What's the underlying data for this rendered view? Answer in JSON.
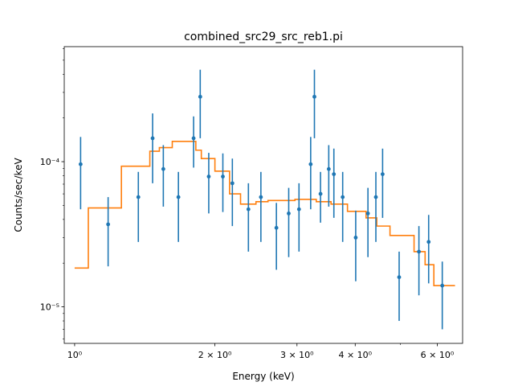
{
  "colors": {
    "data": "#1f77b4",
    "model": "#ff7f0e"
  },
  "chart_data": {
    "type": "scatter",
    "title": "combined_src29_src_reb1.pi",
    "xlabel": "Energy (keV)",
    "ylabel": "Counts/sec/keV",
    "xscale": "log",
    "yscale": "log",
    "xlim": [
      0.95,
      6.8
    ],
    "ylim": [
      5.6e-06,
      0.00062
    ],
    "x_ticks": [
      {
        "value": 1,
        "label": "10⁰"
      },
      {
        "value": 2,
        "label": "2 × 10⁰"
      },
      {
        "value": 3,
        "label": "3 × 10⁰"
      },
      {
        "value": 4,
        "label": "4 × 10⁰"
      },
      {
        "value": 6,
        "label": "6 × 10⁰"
      }
    ],
    "y_ticks": [
      {
        "value": 1e-05,
        "label": "10⁻⁵"
      },
      {
        "value": 0.0001,
        "label": "10⁻⁴"
      }
    ],
    "grid": false,
    "data_points": [
      {
        "x": 1.03,
        "y": 9.6e-05,
        "lo": 4.7e-05,
        "hi": 0.000148
      },
      {
        "x": 1.18,
        "y": 3.7e-05,
        "lo": 1.9e-05,
        "hi": 5.7e-05
      },
      {
        "x": 1.37,
        "y": 5.7e-05,
        "lo": 2.8e-05,
        "hi": 8.5e-05
      },
      {
        "x": 1.47,
        "y": 0.000145,
        "lo": 7.1e-05,
        "hi": 0.000215
      },
      {
        "x": 1.55,
        "y": 8.9e-05,
        "lo": 4.9e-05,
        "hi": 0.00013
      },
      {
        "x": 1.67,
        "y": 5.7e-05,
        "lo": 2.8e-05,
        "hi": 8.5e-05
      },
      {
        "x": 1.8,
        "y": 0.000145,
        "lo": 9.1e-05,
        "hi": 0.000205
      },
      {
        "x": 1.86,
        "y": 0.00028,
        "lo": 0.000145,
        "hi": 0.00043
      },
      {
        "x": 1.94,
        "y": 7.9e-05,
        "lo": 4.4e-05,
        "hi": 0.000115
      },
      {
        "x": 2.08,
        "y": 7.9e-05,
        "lo": 4.5e-05,
        "hi": 0.000114
      },
      {
        "x": 2.18,
        "y": 7.1e-05,
        "lo": 3.6e-05,
        "hi": 0.000105
      },
      {
        "x": 2.36,
        "y": 4.7e-05,
        "lo": 2.4e-05,
        "hi": 7.1e-05
      },
      {
        "x": 2.51,
        "y": 5.7e-05,
        "lo": 2.8e-05,
        "hi": 8.5e-05
      },
      {
        "x": 2.71,
        "y": 3.5e-05,
        "lo": 1.8e-05,
        "hi": 5.2e-05
      },
      {
        "x": 2.88,
        "y": 4.4e-05,
        "lo": 2.2e-05,
        "hi": 6.6e-05
      },
      {
        "x": 3.03,
        "y": 4.7e-05,
        "lo": 2.4e-05,
        "hi": 7.1e-05
      },
      {
        "x": 3.21,
        "y": 9.6e-05,
        "lo": 4.7e-05,
        "hi": 0.000148
      },
      {
        "x": 3.27,
        "y": 0.00028,
        "lo": 0.000145,
        "hi": 0.00043
      },
      {
        "x": 3.37,
        "y": 6e-05,
        "lo": 3.8e-05,
        "hi": 8.5e-05
      },
      {
        "x": 3.51,
        "y": 8.9e-05,
        "lo": 4.9e-05,
        "hi": 0.00013
      },
      {
        "x": 3.6,
        "y": 8.2e-05,
        "lo": 4.1e-05,
        "hi": 0.000123
      },
      {
        "x": 3.76,
        "y": 5.7e-05,
        "lo": 2.8e-05,
        "hi": 8.5e-05
      },
      {
        "x": 4.01,
        "y": 3e-05,
        "lo": 1.5e-05,
        "hi": 4.6e-05
      },
      {
        "x": 4.26,
        "y": 4.4e-05,
        "lo": 2.2e-05,
        "hi": 6.6e-05
      },
      {
        "x": 4.43,
        "y": 5.7e-05,
        "lo": 2.8e-05,
        "hi": 8.5e-05
      },
      {
        "x": 4.58,
        "y": 8.2e-05,
        "lo": 4.1e-05,
        "hi": 0.000123
      },
      {
        "x": 4.97,
        "y": 1.6e-05,
        "lo": 8e-06,
        "hi": 2.4e-05
      },
      {
        "x": 5.48,
        "y": 2.4e-05,
        "lo": 1.2e-05,
        "hi": 3.6e-05
      },
      {
        "x": 5.75,
        "y": 2.8e-05,
        "lo": 1.45e-05,
        "hi": 4.3e-05
      },
      {
        "x": 6.15,
        "y": 1.4e-05,
        "lo": 7e-06,
        "hi": 2.05e-05
      }
    ],
    "model_steps": [
      {
        "x0": 1.0,
        "x1": 1.07,
        "y": 1.85e-05
      },
      {
        "x0": 1.07,
        "x1": 1.26,
        "y": 4.8e-05
      },
      {
        "x0": 1.26,
        "x1": 1.45,
        "y": 9.3e-05
      },
      {
        "x0": 1.45,
        "x1": 1.52,
        "y": 0.000118
      },
      {
        "x0": 1.52,
        "x1": 1.62,
        "y": 0.000125
      },
      {
        "x0": 1.62,
        "x1": 1.82,
        "y": 0.000138
      },
      {
        "x0": 1.82,
        "x1": 1.87,
        "y": 0.00012
      },
      {
        "x0": 1.87,
        "x1": 2.0,
        "y": 0.000105
      },
      {
        "x0": 2.0,
        "x1": 2.15,
        "y": 8.6e-05
      },
      {
        "x0": 2.15,
        "x1": 2.27,
        "y": 6e-05
      },
      {
        "x0": 2.27,
        "x1": 2.45,
        "y": 5.1e-05
      },
      {
        "x0": 2.45,
        "x1": 2.6,
        "y": 5.3e-05
      },
      {
        "x0": 2.6,
        "x1": 2.97,
        "y": 5.4e-05
      },
      {
        "x0": 2.97,
        "x1": 3.3,
        "y": 5.5e-05
      },
      {
        "x0": 3.3,
        "x1": 3.55,
        "y": 5.3e-05
      },
      {
        "x0": 3.55,
        "x1": 3.85,
        "y": 5.1e-05
      },
      {
        "x0": 3.85,
        "x1": 4.22,
        "y": 4.55e-05
      },
      {
        "x0": 4.22,
        "x1": 4.45,
        "y": 4.1e-05
      },
      {
        "x0": 4.45,
        "x1": 4.75,
        "y": 3.6e-05
      },
      {
        "x0": 4.75,
        "x1": 5.35,
        "y": 3.1e-05
      },
      {
        "x0": 5.35,
        "x1": 5.65,
        "y": 2.4e-05
      },
      {
        "x0": 5.65,
        "x1": 5.9,
        "y": 1.95e-05
      },
      {
        "x0": 5.9,
        "x1": 6.55,
        "y": 1.4e-05
      }
    ]
  }
}
